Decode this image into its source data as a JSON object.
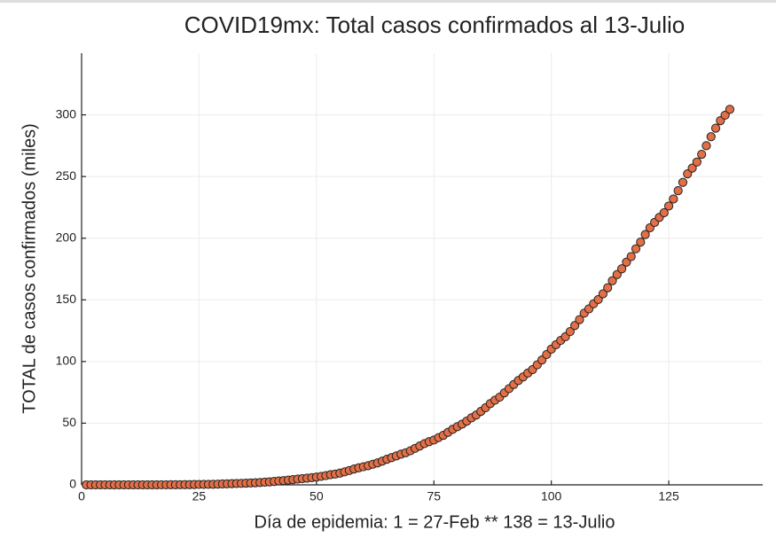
{
  "chart_data": {
    "type": "scatter",
    "title": "COVID19mx: Total casos confirmados al 13-Julio",
    "x_label": "Día de epidemia: 1 = 27-Feb ** 138 = 13-Julio",
    "y_label": "TOTAL de casos confirmados (miles)",
    "xlim": [
      0,
      145
    ],
    "ylim": [
      0,
      350
    ],
    "xticks": [
      0,
      25,
      50,
      75,
      100,
      125
    ],
    "yticks": [
      0,
      50,
      100,
      150,
      200,
      250,
      300
    ],
    "grid": true,
    "color": "#e26f46",
    "x": [
      1,
      2,
      3,
      4,
      5,
      6,
      7,
      8,
      9,
      10,
      11,
      12,
      13,
      14,
      15,
      16,
      17,
      18,
      19,
      20,
      21,
      22,
      23,
      24,
      25,
      26,
      27,
      28,
      29,
      30,
      31,
      32,
      33,
      34,
      35,
      36,
      37,
      38,
      39,
      40,
      41,
      42,
      43,
      44,
      45,
      46,
      47,
      48,
      49,
      50,
      51,
      52,
      53,
      54,
      55,
      56,
      57,
      58,
      59,
      60,
      61,
      62,
      63,
      64,
      65,
      66,
      67,
      68,
      69,
      70,
      71,
      72,
      73,
      74,
      75,
      76,
      77,
      78,
      79,
      80,
      81,
      82,
      83,
      84,
      85,
      86,
      87,
      88,
      89,
      90,
      91,
      92,
      93,
      94,
      95,
      96,
      97,
      98,
      99,
      100,
      101,
      102,
      103,
      104,
      105,
      106,
      107,
      108,
      109,
      110,
      111,
      112,
      113,
      114,
      115,
      116,
      117,
      118,
      119,
      120,
      121,
      122,
      123,
      124,
      125,
      126,
      127,
      128,
      129,
      130,
      131,
      132,
      133,
      134,
      135,
      136,
      137,
      138
    ],
    "values": [
      0.001,
      0.002,
      0.004,
      0.005,
      0.005,
      0.005,
      0.006,
      0.007,
      0.007,
      0.007,
      0.008,
      0.012,
      0.012,
      0.016,
      0.026,
      0.026,
      0.041,
      0.053,
      0.082,
      0.093,
      0.118,
      0.164,
      0.203,
      0.251,
      0.316,
      0.367,
      0.405,
      0.475,
      0.585,
      0.717,
      0.848,
      0.993,
      1.094,
      1.215,
      1.378,
      1.51,
      1.688,
      1.89,
      2.143,
      2.439,
      2.785,
      3.181,
      3.441,
      3.844,
      4.219,
      4.661,
      5.014,
      5.399,
      5.847,
      6.297,
      6.875,
      7.497,
      8.261,
      8.772,
      9.501,
      10.544,
      11.633,
      12.872,
      13.842,
      14.677,
      15.529,
      16.752,
      17.799,
      19.224,
      20.739,
      22.088,
      23.471,
      24.905,
      26.025,
      27.634,
      29.616,
      31.522,
      33.46,
      35.022,
      36.327,
      38.324,
      40.186,
      42.595,
      45.032,
      47.144,
      49.219,
      51.633,
      54.346,
      56.594,
      59.567,
      62.527,
      65.856,
      68.62,
      71.105,
      74.56,
      78.023,
      81.4,
      84.627,
      87.512,
      90.664,
      93.435,
      97.326,
      101.238,
      105.68,
      110.026,
      113.619,
      117.103,
      120.102,
      124.301,
      129.184,
      133.974,
      139.196,
      142.69,
      146.837,
      150.264,
      154.863,
      159.793,
      165.455,
      170.485,
      175.202,
      180.545,
      185.122,
      191.41,
      196.847,
      202.951,
      208.392,
      212.802,
      216.852,
      220.657,
      226.089,
      231.77,
      238.511,
      245.251,
      252.165,
      256.848,
      261.75,
      268.008,
      275.003,
      282.283,
      289.174,
      295.268,
      299.75,
      304.435
    ]
  }
}
